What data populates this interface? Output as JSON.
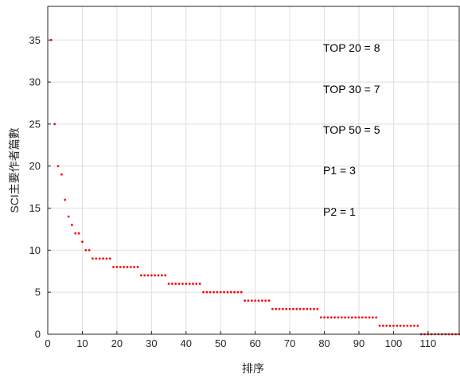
{
  "chart_data": {
    "type": "scatter",
    "title": "",
    "xlabel": "排序",
    "ylabel": "SCI主要作者篇數",
    "xlim": [
      0,
      119
    ],
    "ylim": [
      0,
      39
    ],
    "xticks": [
      0,
      10,
      20,
      30,
      40,
      50,
      60,
      70,
      80,
      90,
      100,
      110
    ],
    "yticks": [
      0,
      5,
      10,
      15,
      20,
      25,
      30,
      35
    ],
    "grid": true,
    "marker_color": "#ff0000",
    "series": [
      {
        "x": [
          1,
          2,
          3,
          4,
          5,
          6,
          7,
          8,
          9,
          10,
          11,
          12,
          13,
          14,
          15,
          16,
          17,
          18,
          19,
          20,
          21,
          22,
          23,
          24,
          25,
          26,
          27,
          28,
          29,
          30,
          31,
          32,
          33,
          34,
          35,
          36,
          37,
          38,
          39,
          40,
          41,
          42,
          43,
          44,
          45,
          46,
          47,
          48,
          49,
          50,
          51,
          52,
          53,
          54,
          55,
          56,
          57,
          58,
          59,
          60,
          61,
          62,
          63,
          64,
          65,
          66,
          67,
          68,
          69,
          70,
          71,
          72,
          73,
          74,
          75,
          76,
          77,
          78,
          79,
          80,
          81,
          82,
          83,
          84,
          85,
          86,
          87,
          88,
          89,
          90,
          91,
          92,
          93,
          94,
          95,
          96,
          97,
          98,
          99,
          100,
          101,
          102,
          103,
          104,
          105,
          106,
          107,
          108,
          109,
          110,
          111,
          112,
          113,
          114,
          115,
          116,
          117,
          118,
          119
        ],
        "y": [
          35,
          25,
          20,
          19,
          16,
          14,
          13,
          12,
          12,
          11,
          10,
          10,
          9,
          9,
          9,
          9,
          9,
          9,
          8,
          8,
          8,
          8,
          8,
          8,
          8,
          8,
          7,
          7,
          7,
          7,
          7,
          7,
          7,
          7,
          6,
          6,
          6,
          6,
          6,
          6,
          6,
          6,
          6,
          6,
          5,
          5,
          5,
          5,
          5,
          5,
          5,
          5,
          5,
          5,
          5,
          5,
          4,
          4,
          4,
          4,
          4,
          4,
          4,
          4,
          3,
          3,
          3,
          3,
          3,
          3,
          3,
          3,
          3,
          3,
          3,
          3,
          3,
          3,
          2,
          2,
          2,
          2,
          2,
          2,
          2,
          2,
          2,
          2,
          2,
          2,
          2,
          2,
          2,
          2,
          2,
          1,
          1,
          1,
          1,
          1,
          1,
          1,
          1,
          1,
          1,
          1,
          1,
          0,
          0,
          0,
          0,
          0,
          0,
          0,
          0,
          0,
          0,
          0,
          0
        ]
      }
    ],
    "annotations": [
      "TOP 20 = 8",
      "TOP 30 = 7",
      "TOP 50 = 5",
      "P1 = 3",
      "P2 = 1"
    ]
  }
}
